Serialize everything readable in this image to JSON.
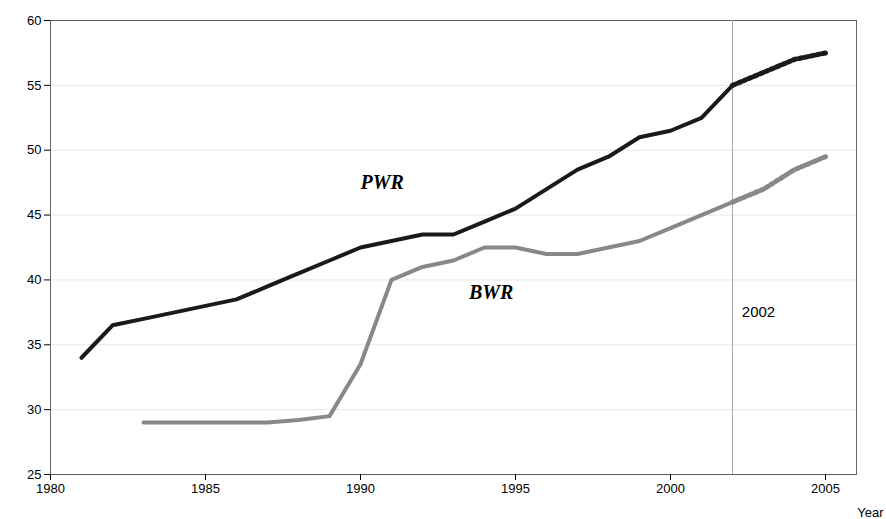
{
  "chart_data": {
    "type": "line",
    "x_label": "Year",
    "x": [
      1981,
      1982,
      1983,
      1984,
      1985,
      1986,
      1987,
      1988,
      1989,
      1990,
      1991,
      1992,
      1993,
      1994,
      1995,
      1996,
      1997,
      1998,
      1999,
      2000,
      2001,
      2002,
      2003,
      2004,
      2005
    ],
    "series": [
      {
        "name": "BWR",
        "color": "#888888",
        "line_style": "solid",
        "values": [
          null,
          null,
          29.0,
          29.0,
          29.0,
          29.0,
          29.0,
          29.2,
          29.5,
          33.5,
          40.0,
          41.0,
          41.5,
          42.5,
          42.5,
          42.0,
          42.0,
          42.5,
          43.0,
          44.0,
          45.0,
          46.0,
          null,
          null,
          null
        ]
      },
      {
        "name": "PWR",
        "color": "#1a1a1a",
        "line_style": "solid",
        "values": [
          34.0,
          36.5,
          37.0,
          37.5,
          38.0,
          38.5,
          39.5,
          40.5,
          41.5,
          42.5,
          43.0,
          43.5,
          43.5,
          44.5,
          45.5,
          47.0,
          48.5,
          49.5,
          51.0,
          51.5,
          52.5,
          55.0,
          null,
          null,
          null
        ]
      },
      {
        "name": "BWR",
        "color": "#888888",
        "line_style": "dotted",
        "values": [
          null,
          null,
          null,
          null,
          null,
          null,
          null,
          null,
          null,
          null,
          null,
          null,
          null,
          null,
          null,
          null,
          null,
          null,
          null,
          null,
          null,
          46.0,
          47.0,
          48.5,
          49.5
        ]
      },
      {
        "name": "PWR",
        "color": "#1a1a1a",
        "line_style": "dotted",
        "values": [
          null,
          null,
          null,
          null,
          null,
          null,
          null,
          null,
          null,
          null,
          null,
          null,
          null,
          null,
          null,
          null,
          null,
          null,
          null,
          null,
          null,
          55.0,
          56.0,
          57.0,
          57.5
        ]
      }
    ],
    "vline": 2002,
    "annotations": [
      {
        "text": "PWR",
        "x": 1990.0,
        "y": 47.0
      },
      {
        "text": "BWR",
        "x": 1993.5,
        "y": 38.5
      },
      {
        "text": "2002",
        "x": 2002.3,
        "y": 37.5
      }
    ],
    "xlim": [
      1980,
      2006
    ],
    "ylim": [
      25,
      60
    ],
    "xticks": [
      1980,
      1985,
      1990,
      1995,
      2000,
      2005
    ],
    "yticks": [
      25,
      30,
      35,
      40,
      45,
      50,
      55,
      60
    ],
    "grid": true
  }
}
